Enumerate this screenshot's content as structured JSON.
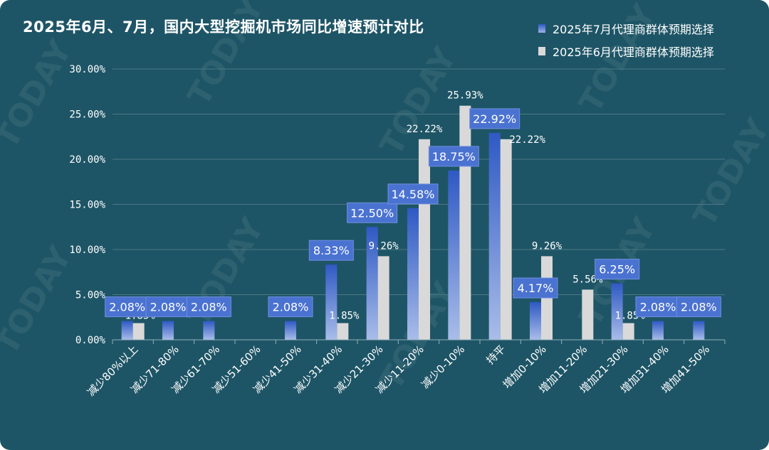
{
  "title": "2025年6月、7月，国内大型挖掘机市场同比增速预计对比",
  "legend": [
    {
      "label": "2025年7月代理商群体预期选择",
      "color": "#3a63c7"
    },
    {
      "label": "2025年6月代理商群体预期选择",
      "color": "#d9d9d9"
    }
  ],
  "watermark": "TODAY",
  "chart_data": {
    "type": "bar",
    "categories": [
      "减少80%以上",
      "减少71-80%",
      "减少61-70%",
      "减少51-60%",
      "减少41-50%",
      "减少31-40%",
      "减少21-30%",
      "减少11-20%",
      "减少0-10%",
      "持平",
      "增加0-10%",
      "增加11-20%",
      "增加21-30%",
      "增加31-40%",
      "增加41-50%"
    ],
    "series": [
      {
        "name": "2025年7月代理商群体预期选择",
        "values": [
          2.08,
          2.08,
          2.08,
          null,
          2.08,
          8.33,
          12.5,
          14.58,
          18.75,
          22.92,
          4.17,
          null,
          6.25,
          2.08,
          2.08
        ],
        "labels": [
          "2.08%",
          "2.08%",
          "2.08%",
          null,
          "2.08%",
          "8.33%",
          "12.50%",
          "14.58%",
          "18.75%",
          "22.92%",
          "4.17%",
          null,
          "6.25%",
          "2.08%",
          "2.08%"
        ]
      },
      {
        "name": "2025年6月代理商群体预期选择",
        "values": [
          1.85,
          null,
          null,
          null,
          null,
          1.85,
          9.26,
          22.22,
          25.93,
          22.22,
          9.26,
          5.56,
          1.85,
          null,
          null
        ],
        "labels": [
          "1.85%",
          null,
          null,
          null,
          null,
          "1.85%",
          "9.26%",
          "22.22%",
          "25.93%",
          "22.22%",
          "9.26%",
          "5.56%",
          "1.85%",
          null,
          null
        ]
      }
    ],
    "yticks": [
      "30.00%",
      "25.00%",
      "20.00%",
      "15.00%",
      "10.00%",
      "5.00%",
      "0.00%"
    ],
    "ylim": [
      0,
      30
    ]
  }
}
